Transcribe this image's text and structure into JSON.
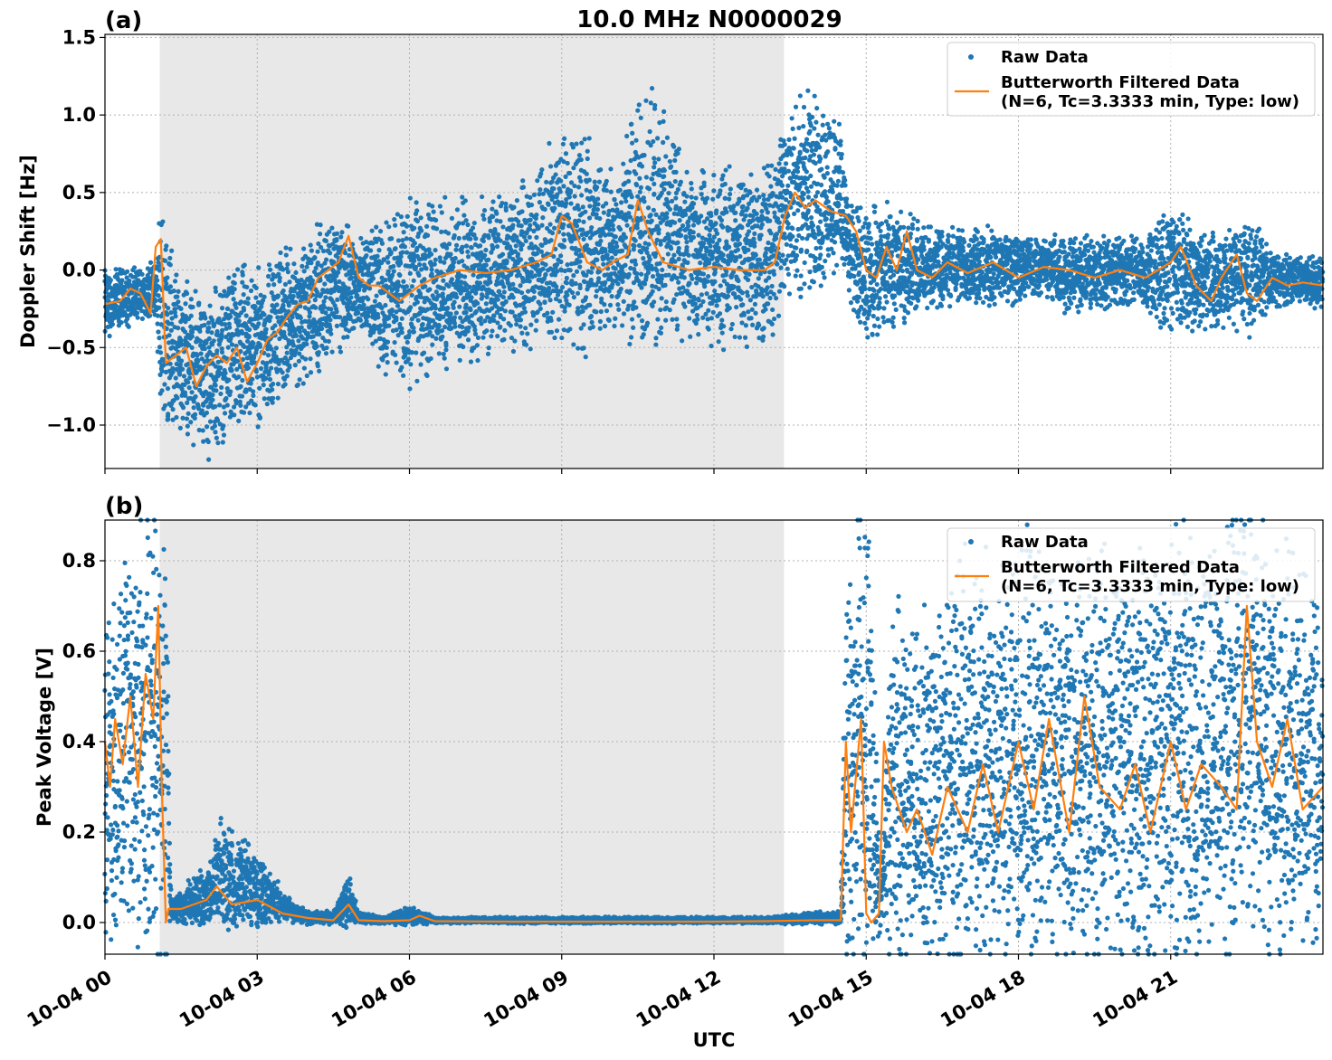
{
  "figure": {
    "title": "10.0 MHz N0000029",
    "xlabel": "UTC"
  },
  "chart_data": [
    {
      "type": "scatter",
      "panel_label": "(a)",
      "ylabel": "Doppler Shift [Hz]",
      "ylim": [
        -1.28,
        1.52
      ],
      "yticks": [
        -1.0,
        -0.5,
        0.0,
        0.5,
        1.0,
        1.5
      ],
      "ytick_labels": [
        "−1.0",
        "−0.5",
        "0.0",
        "0.5",
        "1.0",
        "1.5"
      ],
      "xlim_hours": [
        0,
        24
      ],
      "xticks_hours": [
        0,
        3,
        6,
        9,
        12,
        15,
        18,
        21
      ],
      "xtick_labels": [
        "10-04 00",
        "10-04 03",
        "10-04 06",
        "10-04 09",
        "10-04 12",
        "10-04 15",
        "10-04 18",
        "10-04 21"
      ],
      "grid": true,
      "legend_position": "top-right",
      "night_span_hours": [
        1.08,
        13.38
      ],
      "series": [
        {
          "name": "Raw Data",
          "kind": "scatter",
          "color": "#1f77b4",
          "envelope_hours": [
            0,
            0.5,
            1.0,
            1.1,
            1.5,
            2.0,
            2.5,
            3.0,
            3.5,
            4.0,
            4.5,
            5.0,
            5.5,
            6.0,
            6.5,
            7.0,
            7.5,
            8.0,
            8.5,
            9.0,
            9.5,
            10.0,
            10.5,
            11.0,
            11.5,
            12.0,
            12.5,
            13.0,
            13.5,
            14.0,
            14.5,
            14.7,
            15.0,
            15.5,
            16.0,
            16.5,
            17.0,
            17.5,
            18.0,
            18.5,
            19.0,
            19.5,
            20.0,
            20.5,
            21.0,
            21.5,
            22.0,
            22.5,
            23.0,
            23.5,
            24.0
          ],
          "envelope_low": [
            -0.4,
            -0.3,
            -0.25,
            -0.8,
            -0.9,
            -1.05,
            -0.9,
            -0.85,
            -0.7,
            -0.6,
            -0.4,
            -0.3,
            -0.5,
            -0.55,
            -0.5,
            -0.45,
            -0.4,
            -0.35,
            -0.3,
            -0.25,
            -0.3,
            -0.2,
            -0.3,
            -0.25,
            -0.25,
            -0.3,
            -0.3,
            -0.3,
            0.0,
            0.05,
            0.1,
            -0.1,
            -0.4,
            -0.25,
            -0.2,
            -0.15,
            -0.15,
            -0.15,
            -0.15,
            -0.1,
            -0.2,
            -0.2,
            -0.15,
            -0.2,
            -0.25,
            -0.3,
            -0.3,
            -0.3,
            -0.2,
            -0.15,
            -0.2
          ],
          "envelope_high": [
            -0.05,
            -0.05,
            0.0,
            0.25,
            -0.2,
            -0.3,
            -0.15,
            -0.1,
            0.0,
            0.05,
            0.25,
            0.1,
            0.2,
            0.3,
            0.3,
            0.3,
            0.3,
            0.35,
            0.45,
            0.75,
            0.65,
            0.5,
            0.9,
            0.8,
            0.5,
            0.45,
            0.5,
            0.5,
            0.85,
            0.95,
            0.85,
            0.35,
            0.25,
            0.3,
            0.25,
            0.2,
            0.2,
            0.2,
            0.15,
            0.15,
            0.15,
            0.15,
            0.15,
            0.15,
            0.3,
            0.2,
            0.15,
            0.25,
            0.05,
            0.05,
            0.05
          ]
        },
        {
          "name": "Butterworth Filtered Data\n(N=6, Tc=3.3333 min, Type: low)",
          "kind": "line",
          "color": "#ff7f0e",
          "x_hours": [
            0,
            0.3,
            0.5,
            0.7,
            0.9,
            1.0,
            1.1,
            1.2,
            1.4,
            1.6,
            1.8,
            2.0,
            2.2,
            2.4,
            2.6,
            2.8,
            3.0,
            3.2,
            3.4,
            3.6,
            3.8,
            4.0,
            4.2,
            4.4,
            4.6,
            4.8,
            5.0,
            5.2,
            5.4,
            5.6,
            5.8,
            6.0,
            6.2,
            6.5,
            7.0,
            7.5,
            8.0,
            8.5,
            8.8,
            9.0,
            9.2,
            9.5,
            9.8,
            10.0,
            10.3,
            10.5,
            10.7,
            11.0,
            11.5,
            12.0,
            12.5,
            13.0,
            13.2,
            13.4,
            13.6,
            13.8,
            14.0,
            14.3,
            14.6,
            14.8,
            15.0,
            15.2,
            15.4,
            15.6,
            15.8,
            16.0,
            16.3,
            16.6,
            17.0,
            17.5,
            18.0,
            18.5,
            19.0,
            19.5,
            20.0,
            20.5,
            21.0,
            21.2,
            21.5,
            21.8,
            22.0,
            22.3,
            22.5,
            22.7,
            23.0,
            23.3,
            23.6,
            24.0
          ],
          "y": [
            -0.22,
            -0.2,
            -0.12,
            -0.15,
            -0.28,
            0.15,
            0.2,
            -0.6,
            -0.55,
            -0.5,
            -0.75,
            -0.62,
            -0.55,
            -0.6,
            -0.5,
            -0.72,
            -0.6,
            -0.45,
            -0.4,
            -0.3,
            -0.22,
            -0.2,
            -0.05,
            0.0,
            0.05,
            0.22,
            -0.05,
            -0.1,
            -0.1,
            -0.15,
            -0.2,
            -0.15,
            -0.1,
            -0.05,
            0.0,
            -0.02,
            0.0,
            0.05,
            0.1,
            0.35,
            0.3,
            0.05,
            0.0,
            0.05,
            0.1,
            0.45,
            0.25,
            0.05,
            0.0,
            0.02,
            0.0,
            0.0,
            0.05,
            0.35,
            0.5,
            0.4,
            0.45,
            0.38,
            0.35,
            0.25,
            0.0,
            -0.05,
            0.15,
            0.0,
            0.25,
            0.0,
            -0.05,
            0.05,
            -0.02,
            0.05,
            -0.05,
            0.02,
            0.0,
            -0.05,
            0.0,
            -0.05,
            0.05,
            0.15,
            -0.1,
            -0.2,
            -0.05,
            0.1,
            -0.15,
            -0.2,
            -0.05,
            -0.1,
            -0.08,
            -0.1
          ]
        }
      ]
    },
    {
      "type": "scatter",
      "panel_label": "(b)",
      "ylabel": "Peak Voltage [V]",
      "ylim": [
        -0.07,
        0.89
      ],
      "yticks": [
        0.0,
        0.2,
        0.4,
        0.6,
        0.8
      ],
      "ytick_labels": [
        "0.0",
        "0.2",
        "0.4",
        "0.6",
        "0.8"
      ],
      "xlim_hours": [
        0,
        24
      ],
      "xticks_hours": [
        0,
        3,
        6,
        9,
        12,
        15,
        18,
        21
      ],
      "xtick_labels": [
        "10-04 00",
        "10-04 03",
        "10-04 06",
        "10-04 09",
        "10-04 12",
        "10-04 15",
        "10-04 18",
        "10-04 21"
      ],
      "grid": true,
      "legend_position": "top-right",
      "night_span_hours": [
        1.08,
        13.38
      ],
      "series": [
        {
          "name": "Raw Data",
          "kind": "scatter",
          "color": "#1f77b4",
          "envelope_hours": [
            0,
            0.5,
            1.0,
            1.2,
            1.3,
            2.0,
            2.3,
            2.8,
            3.2,
            3.6,
            4.0,
            4.5,
            4.8,
            5.0,
            5.5,
            6.0,
            6.5,
            8.0,
            10.0,
            12.0,
            13.0,
            14.0,
            14.5,
            14.6,
            15.0,
            15.3,
            15.5,
            16.0,
            17.0,
            18.0,
            19.0,
            20.0,
            21.0,
            22.0,
            22.5,
            23.0,
            23.5,
            24.0
          ],
          "envelope_low": [
            0.1,
            0.08,
            0.1,
            0.0,
            0.01,
            0.01,
            0.02,
            0.02,
            0.015,
            0.01,
            0.0,
            0.0,
            0.01,
            0.0,
            0.0,
            0.0,
            0.0,
            0.0,
            0.0,
            0.0,
            0.0,
            0.0,
            0.0,
            0.05,
            0.0,
            0.0,
            0.05,
            0.03,
            0.05,
            0.05,
            0.05,
            0.05,
            0.05,
            0.05,
            0.1,
            0.05,
            0.05,
            0.1
          ],
          "envelope_high": [
            0.6,
            0.68,
            0.84,
            0.8,
            0.05,
            0.1,
            0.2,
            0.15,
            0.1,
            0.05,
            0.02,
            0.02,
            0.09,
            0.02,
            0.01,
            0.03,
            0.01,
            0.01,
            0.01,
            0.01,
            0.01,
            0.02,
            0.02,
            0.72,
            0.83,
            0.1,
            0.6,
            0.55,
            0.7,
            0.7,
            0.65,
            0.7,
            0.7,
            0.75,
            0.84,
            0.7,
            0.72,
            0.6
          ]
        },
        {
          "name": "Butterworth Filtered Data\n(N=6, Tc=3.3333 min, Type: low)",
          "kind": "line",
          "color": "#ff7f0e",
          "x_hours": [
            0,
            0.1,
            0.2,
            0.35,
            0.5,
            0.65,
            0.8,
            0.95,
            1.05,
            1.12,
            1.2,
            1.25,
            1.5,
            2.0,
            2.2,
            2.5,
            3.0,
            3.5,
            4.0,
            4.5,
            4.8,
            5.0,
            5.5,
            6.0,
            6.2,
            6.5,
            8.0,
            10.0,
            12.0,
            13.0,
            14.0,
            14.5,
            14.6,
            14.7,
            14.9,
            15.0,
            15.1,
            15.25,
            15.35,
            15.5,
            15.8,
            16.0,
            16.3,
            16.6,
            17.0,
            17.3,
            17.6,
            18.0,
            18.3,
            18.6,
            19.0,
            19.3,
            19.6,
            20.0,
            20.3,
            20.6,
            21.0,
            21.3,
            21.6,
            22.0,
            22.3,
            22.5,
            22.7,
            23.0,
            23.3,
            23.6,
            24.0
          ],
          "y": [
            0.4,
            0.3,
            0.45,
            0.35,
            0.5,
            0.3,
            0.55,
            0.45,
            0.7,
            0.3,
            0.0,
            0.03,
            0.03,
            0.05,
            0.08,
            0.04,
            0.05,
            0.02,
            0.01,
            0.005,
            0.04,
            0.005,
            0.003,
            0.005,
            0.015,
            0.003,
            0.002,
            0.002,
            0.002,
            0.003,
            0.005,
            0.005,
            0.4,
            0.2,
            0.45,
            0.02,
            0.0,
            0.02,
            0.4,
            0.3,
            0.2,
            0.25,
            0.15,
            0.3,
            0.2,
            0.35,
            0.2,
            0.4,
            0.25,
            0.45,
            0.2,
            0.5,
            0.3,
            0.25,
            0.35,
            0.2,
            0.4,
            0.25,
            0.35,
            0.3,
            0.25,
            0.7,
            0.4,
            0.3,
            0.45,
            0.25,
            0.3
          ]
        }
      ]
    }
  ]
}
